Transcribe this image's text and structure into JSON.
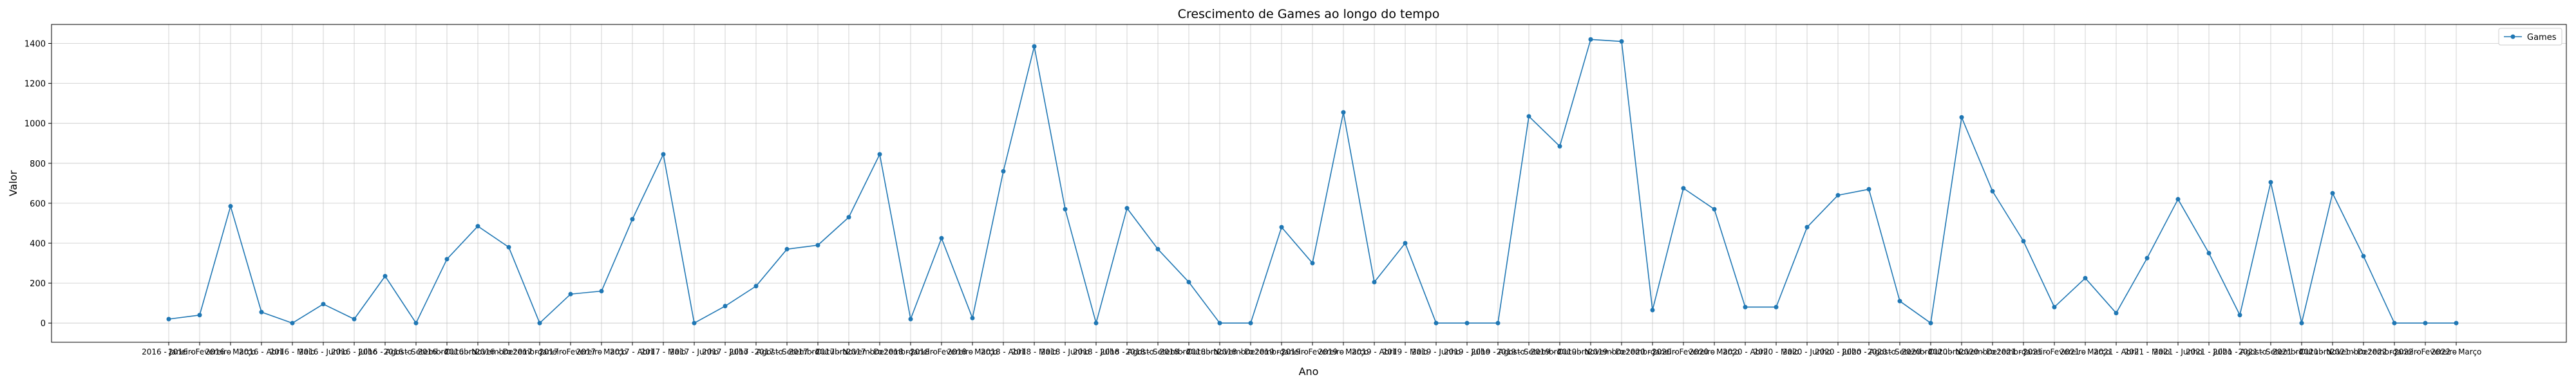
{
  "chart_data": {
    "type": "line",
    "title": "Crescimento de Games ao longo do tempo",
    "xlabel": "Ano",
    "ylabel": "Valor",
    "ylim": [
      -96,
      1495
    ],
    "yticks": [
      0,
      200,
      400,
      600,
      800,
      1000,
      1200,
      1400
    ],
    "grid": true,
    "legend_position": "top-right",
    "series": [
      {
        "name": "Games",
        "color": "#1f77b4",
        "values": [
          20,
          40,
          585,
          55,
          0,
          95,
          20,
          235,
          0,
          320,
          485,
          380,
          0,
          145,
          160,
          520,
          845,
          0,
          85,
          185,
          370,
          390,
          530,
          845,
          20,
          425,
          25,
          760,
          1385,
          570,
          0,
          575,
          370,
          205,
          0,
          0,
          480,
          300,
          1055,
          205,
          400,
          0,
          0,
          0,
          1035,
          885,
          1420,
          1410,
          65,
          675,
          570,
          80,
          80,
          480,
          640,
          670,
          110,
          0,
          1030,
          660,
          410,
          80,
          225,
          50,
          325,
          620,
          350,
          40,
          705,
          0,
          650,
          335,
          0,
          0,
          0
        ]
      }
    ],
    "x_tick_labels": [
      "2016 - Janeiro",
      "2016 - Fevereiro",
      "2016 - Março",
      "2016 - Abril",
      "2016 - Maio",
      "2016 - Junho",
      "2016 - Julho",
      "2016 - Agosto",
      "2016 - Setembro",
      "2016 - Outubro",
      "2016 - Novembro",
      "2016 - Dezembro",
      "2017 - Janeiro",
      "2017 - Fevereiro",
      "2017 - Março",
      "2017 - Abril",
      "2017 - Maio",
      "2017 - Junho",
      "2017 - Julho",
      "2017 - Agosto",
      "2017 - Setembro",
      "2017 - Outubro",
      "2017 - Novembro",
      "2017 - Dezembro",
      "2018 - Janeiro",
      "2018 - Fevereiro",
      "2018 - Março",
      "2018 - Abril",
      "2018 - Maio",
      "2018 - Junho",
      "2018 - Julho",
      "2018 - Agosto",
      "2018 - Setembro",
      "2018 - Outubro",
      "2018 - Novembro",
      "2018 - Dezembro",
      "2019 - Janeiro",
      "2019 - Fevereiro",
      "2019 - Março",
      "2019 - Abril",
      "2019 - Maio",
      "2019 - Junho",
      "2019 - Julho",
      "2019 - Agosto",
      "2019 - Setembro",
      "2019 - Outubro",
      "2019 - Novembro",
      "2019 - Dezembro",
      "2020 - Janeiro",
      "2020 - Fevereiro",
      "2020 - Março",
      "2020 - Abril",
      "2020 - Maio",
      "2020 - Junho",
      "2020 - Julho",
      "2020 - Agosto",
      "2020 - Setembro",
      "2020 - Outubro",
      "2020 - Novembro",
      "2020 - Dezembro",
      "2021 - Janeiro",
      "2021 - Fevereiro",
      "2021 - Março",
      "2021 - Abril",
      "2021 - Maio",
      "2021 - Junho",
      "2021 - Julho",
      "2021 - Agosto",
      "2021 - Setembro",
      "2021 - Outubro",
      "2021 - Novembro",
      "2021 - Dezembro",
      "2022 - Janeiro",
      "2022 - Fevereiro",
      "2022 - Março"
    ]
  }
}
